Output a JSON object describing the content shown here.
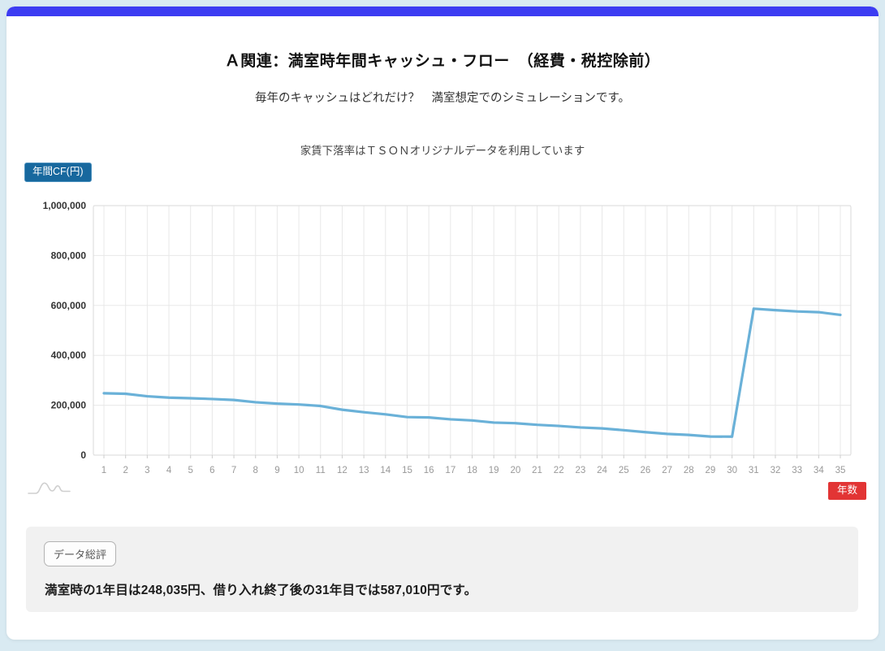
{
  "page": {
    "title": "Ａ関連：満室時年間キャッシュ・フロー　（経費・税控除前）",
    "subtitle": "毎年のキャッシュはどれだけ？　満室想定でのシミュレーションです。",
    "chart_note": "家賃下落率はＴＳＯＮオリジナルデータを利用しています"
  },
  "chart": {
    "y_axis_badge": "年間CF(円)",
    "x_axis_badge": "年数"
  },
  "summary": {
    "badge": "データ総評",
    "text": "満室時の1年目は248,035円、借り入れ終了後の31年目では587,010円です。"
  },
  "colors": {
    "top_bar": "#3c3cf2",
    "page_background": "#d9eaf2",
    "line": "#6ab1d8",
    "y_badge_background": "#17689e",
    "x_badge_background": "#e23434",
    "summary_background": "#f1f1f1",
    "gridline": "#e8e8e8"
  },
  "chart_data": {
    "type": "line",
    "x": [
      1,
      2,
      3,
      4,
      5,
      6,
      7,
      8,
      9,
      10,
      11,
      12,
      13,
      14,
      15,
      16,
      17,
      18,
      19,
      20,
      21,
      22,
      23,
      24,
      25,
      26,
      27,
      28,
      29,
      30,
      31,
      32,
      33,
      34,
      35
    ],
    "values": [
      248035,
      246000,
      236000,
      230500,
      228000,
      225000,
      221000,
      212000,
      206500,
      203000,
      197000,
      182000,
      172000,
      163500,
      152500,
      151000,
      143500,
      139000,
      130500,
      128000,
      121500,
      117000,
      111000,
      107000,
      100000,
      92000,
      85000,
      81000,
      74500,
      74000,
      587010,
      581000,
      576000,
      573000,
      562000
    ],
    "title": "Ａ関連：満室時年間キャッシュ・フロー　（経費・税控除前）",
    "xlabel": "年数",
    "ylabel": "年間CF(円)",
    "ylim": [
      0,
      1000000
    ],
    "yticks": [
      0,
      200000,
      400000,
      600000,
      800000,
      1000000
    ],
    "ytick_labels": [
      "0",
      "200,000",
      "400,000",
      "600,000",
      "800,000",
      "1,000,000"
    ],
    "grid": true,
    "legend_position": "none",
    "line_color": "#6ab1d8",
    "annotations": {
      "year_1_value": "248,035円",
      "year_31_value": "587,010円"
    }
  }
}
